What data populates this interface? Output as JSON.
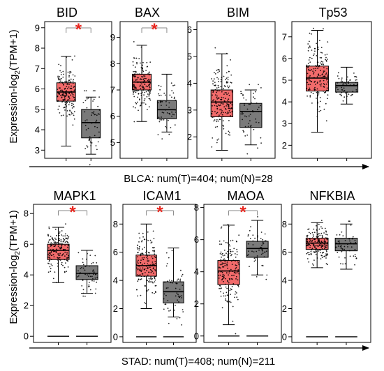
{
  "figure": {
    "y_axis_label": "Expression-log2(TPM+1)",
    "y_axis_label_main": "Expression-log",
    "y_axis_label_sub": "2",
    "y_axis_label_tail": "(TPM+1)",
    "significance_marker": "*",
    "colors": {
      "tumor": "#f26b6b",
      "normal": "#7a7a7a",
      "star": "#e8261e",
      "points": "#000000"
    }
  },
  "chart_data": [
    {
      "type": "boxplot",
      "group": "BLCA: num(T)=404; num(N)=28",
      "panels": [
        {
          "title": "BID",
          "ylim": [
            2.6,
            9.3
          ],
          "ticks": [
            3,
            4,
            5,
            6,
            7,
            8,
            9
          ],
          "significant": true,
          "boxes": [
            {
              "name": "Tumor",
              "min": 3.2,
              "q1": 5.4,
              "median": 5.85,
              "q3": 6.3,
              "max": 7.6
            },
            {
              "name": "Normal",
              "min": 2.8,
              "q1": 3.6,
              "median": 4.35,
              "q3": 5.0,
              "max": 5.6
            }
          ]
        },
        {
          "title": "BAX",
          "ylim": [
            4.4,
            9.6
          ],
          "ticks": [
            5,
            6,
            7,
            8,
            9
          ],
          "significant": true,
          "boxes": [
            {
              "name": "Tumor",
              "min": 5.8,
              "q1": 7.0,
              "median": 7.3,
              "q3": 7.6,
              "max": 8.7
            },
            {
              "name": "Normal",
              "min": 5.4,
              "q1": 5.9,
              "median": 6.25,
              "q3": 6.6,
              "max": 7.6
            }
          ]
        },
        {
          "title": "BIM",
          "ylim": [
            1.2,
            6.3
          ],
          "ticks": [
            2,
            3,
            4,
            5,
            6
          ],
          "significant": false,
          "boxes": [
            {
              "name": "Tumor",
              "min": 1.5,
              "q1": 2.75,
              "median": 3.3,
              "q3": 3.75,
              "max": 5.1
            },
            {
              "name": "Normal",
              "min": 1.7,
              "q1": 2.35,
              "median": 2.95,
              "q3": 3.25,
              "max": 3.75
            }
          ]
        },
        {
          "title": "Tp53",
          "ylim": [
            1.4,
            7.7
          ],
          "ticks": [
            2,
            3,
            4,
            5,
            6,
            7
          ],
          "significant": false,
          "boxes": [
            {
              "name": "Tumor",
              "min": 2.6,
              "q1": 4.5,
              "median": 5.1,
              "q3": 5.65,
              "max": 7.3
            },
            {
              "name": "Normal",
              "min": 3.9,
              "q1": 4.45,
              "median": 4.75,
              "q3": 4.9,
              "max": 5.6
            }
          ]
        }
      ]
    },
    {
      "type": "boxplot",
      "group": "STAD: num(T)=408; num(N)=211",
      "panels": [
        {
          "title": "MAPK1",
          "ylim": [
            -0.4,
            8.6
          ],
          "ticks": [
            0,
            2,
            4,
            6,
            8
          ],
          "significant": true,
          "boxes": [
            {
              "name": "Tumor",
              "min": 3.5,
              "q1": 5.0,
              "median": 5.6,
              "q3": 6.0,
              "max": 7.1
            },
            {
              "name": "Normal",
              "min": 2.8,
              "q1": 3.7,
              "median": 4.1,
              "q3": 4.6,
              "max": 5.6
            }
          ]
        },
        {
          "title": "ICAM1",
          "ylim": [
            -0.4,
            9.4
          ],
          "ticks": [
            0,
            2,
            4,
            6,
            8
          ],
          "significant": true,
          "boxes": [
            {
              "name": "Tumor",
              "min": 2.0,
              "q1": 4.3,
              "median": 5.05,
              "q3": 5.8,
              "max": 8.0
            },
            {
              "name": "Normal",
              "min": 1.4,
              "q1": 2.4,
              "median": 3.2,
              "q3": 3.9,
              "max": 6.3
            }
          ]
        },
        {
          "title": "MAOA",
          "ylim": [
            -0.4,
            8.2
          ],
          "ticks": [
            0,
            2,
            4,
            6,
            8
          ],
          "significant": true,
          "boxes": [
            {
              "name": "Tumor",
              "min": 0.7,
              "q1": 3.2,
              "median": 4.05,
              "q3": 4.7,
              "max": 6.9
            },
            {
              "name": "Normal",
              "min": 3.8,
              "q1": 4.9,
              "median": 5.45,
              "q3": 5.9,
              "max": 7.2
            }
          ]
        },
        {
          "title": "NFKBIA",
          "ylim": [
            -0.4,
            9.4
          ],
          "ticks": [
            0,
            2,
            4,
            6,
            8
          ],
          "significant": false,
          "boxes": [
            {
              "name": "Tumor",
              "min": 4.9,
              "q1": 6.2,
              "median": 6.65,
              "q3": 7.0,
              "max": 8.1
            },
            {
              "name": "Normal",
              "min": 4.8,
              "q1": 6.1,
              "median": 6.6,
              "q3": 7.0,
              "max": 8.0
            }
          ]
        }
      ]
    }
  ]
}
